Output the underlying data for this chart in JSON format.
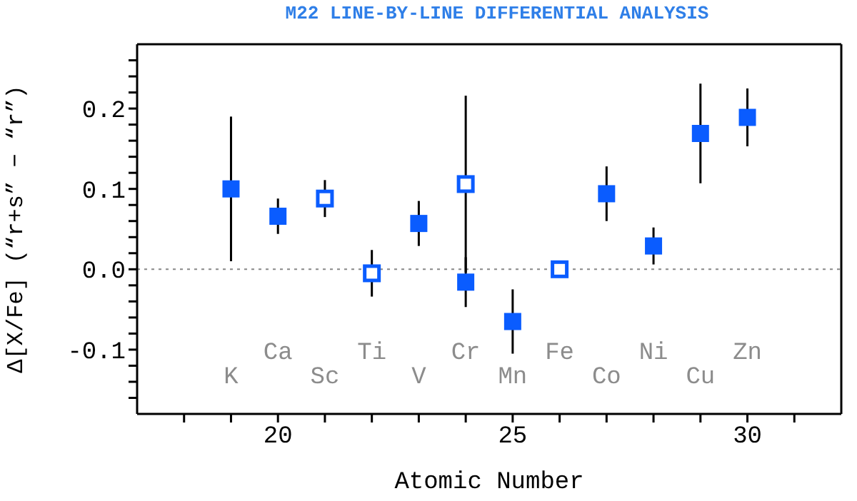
{
  "chart_data": {
    "type": "scatter",
    "title": "M22 LINE-BY-LINE DIFFERENTIAL ANALYSIS",
    "xlabel": "Atomic Number",
    "ylabel": "Δ[X/Fe] (“r+s” − “r”)",
    "xlim": [
      17,
      32
    ],
    "xticks": [
      {
        "value": 18,
        "label": null
      },
      {
        "value": 19,
        "label": null
      },
      20,
      {
        "value": 21,
        "label": null
      },
      {
        "value": 22,
        "label": null
      },
      {
        "value": 23,
        "label": null
      },
      {
        "value": 24,
        "label": null
      },
      25,
      {
        "value": 26,
        "label": null
      },
      {
        "value": 27,
        "label": null
      },
      {
        "value": 28,
        "label": null
      },
      {
        "value": 29,
        "label": null
      },
      30,
      {
        "value": 31,
        "label": null
      }
    ],
    "ylim": [
      -0.18,
      0.28
    ],
    "yticks": [
      {
        "value": -0.16,
        "label": null
      },
      {
        "value": -0.14,
        "label": null
      },
      {
        "value": -0.12,
        "label": null
      },
      -0.1,
      {
        "value": -0.08,
        "label": null
      },
      {
        "value": -0.06,
        "label": null
      },
      {
        "value": -0.04,
        "label": null
      },
      {
        "value": -0.02,
        "label": null
      },
      {
        "value": 0,
        "label": "0.0"
      },
      {
        "value": 0.02,
        "label": null
      },
      {
        "value": 0.04,
        "label": null
      },
      {
        "value": 0.06,
        "label": null
      },
      {
        "value": 0.08,
        "label": null
      },
      0.1,
      {
        "value": 0.12,
        "label": null
      },
      {
        "value": 0.14,
        "label": null
      },
      {
        "value": 0.16,
        "label": null
      },
      {
        "value": 0.18,
        "label": null
      },
      0.2,
      {
        "value": 0.22,
        "label": null
      },
      {
        "value": 0.24,
        "label": null
      },
      {
        "value": 0.26,
        "label": null
      }
    ],
    "marker": "square",
    "grid": false,
    "legend": false,
    "series": [
      {
        "color": "#0a5cff",
        "x": [
          19,
          20,
          23,
          24,
          25,
          27,
          28,
          29,
          30
        ],
        "values": [
          0.1,
          0.066,
          0.057,
          -0.016,
          -0.065,
          0.094,
          0.029,
          0.169,
          0.189
        ],
        "errors": [
          0.09,
          0.022,
          0.028,
          0.031,
          0.04,
          0.034,
          0.023,
          0.062,
          0.036
        ]
      },
      {
        "color": "#0a5cff",
        "x": [
          21,
          22,
          24,
          26
        ],
        "values": [
          0.088,
          -0.005,
          0.106,
          0.0
        ],
        "errors": [
          0.023,
          0.029,
          0.11,
          null
        ]
      }
    ],
    "ref_lines": [
      {
        "axis": "y",
        "value": 0,
        "color": "#888888",
        "line_style": "dotted"
      }
    ],
    "annotations": [
      "K",
      "Ca",
      "Sc",
      "Ti",
      "V",
      "Cr",
      "Mn",
      "Fe",
      "Co",
      "Ni",
      "Cu",
      "Zn"
    ]
  }
}
